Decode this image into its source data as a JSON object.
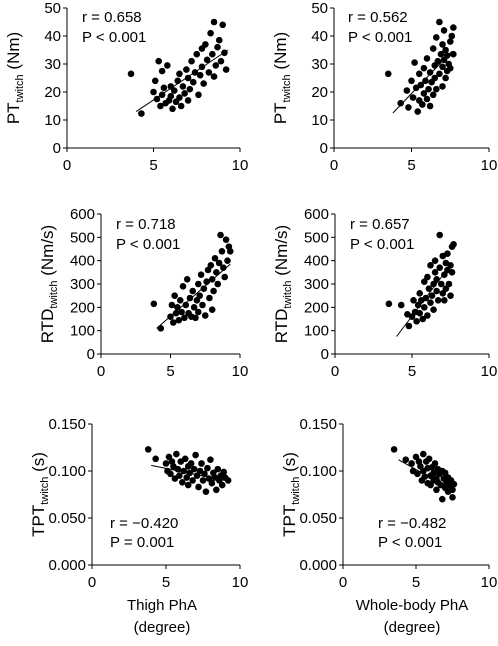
{
  "chart_data": [
    {
      "type": "scatter",
      "title": "",
      "ylabel_main": "PT",
      "ylabel_sub": "twitch",
      "ylabel_unit": " (Nm)",
      "xlabel": "",
      "xlabel_line2": "",
      "xlim": [
        0,
        10
      ],
      "ylim": [
        0,
        50
      ],
      "xticks": [
        "0",
        "5",
        "10"
      ],
      "yticks": [
        "0",
        "10",
        "20",
        "30",
        "40",
        "50"
      ],
      "stat_r": "r = 0.658",
      "stat_p": "P < 0.001",
      "fit": [
        [
          4.0,
          13.0
        ],
        [
          9.3,
          35.0
        ]
      ],
      "points": [
        [
          3.7,
          26.5
        ],
        [
          4.3,
          12.3
        ],
        [
          5.0,
          20
        ],
        [
          5.1,
          24
        ],
        [
          5.2,
          17.5
        ],
        [
          5.3,
          31
        ],
        [
          5.4,
          15
        ],
        [
          5.5,
          27.5
        ],
        [
          5.5,
          19
        ],
        [
          5.6,
          21.5
        ],
        [
          5.7,
          16
        ],
        [
          5.8,
          29.5
        ],
        [
          5.9,
          17
        ],
        [
          6.0,
          22
        ],
        [
          6.0,
          18.5
        ],
        [
          6.1,
          14
        ],
        [
          6.2,
          20.5
        ],
        [
          6.3,
          16.5
        ],
        [
          6.4,
          24
        ],
        [
          6.5,
          18
        ],
        [
          6.5,
          26.5
        ],
        [
          6.6,
          15
        ],
        [
          6.7,
          22
        ],
        [
          6.8,
          19.5
        ],
        [
          6.9,
          28
        ],
        [
          7.0,
          17
        ],
        [
          7.0,
          25
        ],
        [
          7.1,
          21
        ],
        [
          7.2,
          31
        ],
        [
          7.3,
          23.5
        ],
        [
          7.4,
          27
        ],
        [
          7.5,
          33.5
        ],
        [
          7.6,
          19
        ],
        [
          7.7,
          26
        ],
        [
          7.8,
          35.5
        ],
        [
          7.8,
          29
        ],
        [
          7.9,
          23
        ],
        [
          8.0,
          37
        ],
        [
          8.1,
          31.5
        ],
        [
          8.2,
          27
        ],
        [
          8.3,
          41
        ],
        [
          8.4,
          33.5
        ],
        [
          8.5,
          25.5
        ],
        [
          8.5,
          45
        ],
        [
          8.6,
          29.5
        ],
        [
          8.7,
          36
        ],
        [
          8.8,
          38.5
        ],
        [
          8.9,
          31
        ],
        [
          9.0,
          44
        ],
        [
          9.1,
          34
        ],
        [
          9.2,
          28
        ]
      ]
    },
    {
      "type": "scatter",
      "title": "",
      "ylabel_main": "PT",
      "ylabel_sub": "twitch",
      "ylabel_unit": " (Nm)",
      "xlabel": "",
      "xlabel_line2": "",
      "xlim": [
        0,
        10
      ],
      "ylim": [
        0,
        50
      ],
      "xticks": [
        "0",
        "5",
        "10"
      ],
      "yticks": [
        "0",
        "10",
        "20",
        "30",
        "40",
        "50"
      ],
      "stat_r": "r = 0.562",
      "stat_p": "P < 0.001",
      "fit": [
        [
          3.8,
          12.5
        ],
        [
          7.6,
          34.5
        ]
      ],
      "points": [
        [
          3.5,
          26.5
        ],
        [
          4.3,
          16
        ],
        [
          4.7,
          20.5
        ],
        [
          4.8,
          14.5
        ],
        [
          5.0,
          24
        ],
        [
          5.1,
          18
        ],
        [
          5.2,
          30.5
        ],
        [
          5.3,
          21.5
        ],
        [
          5.4,
          13
        ],
        [
          5.5,
          26.5
        ],
        [
          5.5,
          17
        ],
        [
          5.6,
          22.5
        ],
        [
          5.7,
          15.5
        ],
        [
          5.8,
          28.5
        ],
        [
          5.8,
          19.5
        ],
        [
          5.9,
          24
        ],
        [
          6.0,
          17.5
        ],
        [
          6.0,
          32
        ],
        [
          6.1,
          21
        ],
        [
          6.2,
          27
        ],
        [
          6.2,
          15
        ],
        [
          6.3,
          23.5
        ],
        [
          6.4,
          19
        ],
        [
          6.4,
          35.5
        ],
        [
          6.5,
          29.5
        ],
        [
          6.5,
          25
        ],
        [
          6.6,
          21
        ],
        [
          6.6,
          39.5
        ],
        [
          6.7,
          31
        ],
        [
          6.8,
          26.5
        ],
        [
          6.8,
          45
        ],
        [
          6.9,
          33.5
        ],
        [
          7.0,
          22
        ],
        [
          7.0,
          37
        ],
        [
          7.0,
          29
        ],
        [
          7.1,
          42
        ],
        [
          7.1,
          31.5
        ],
        [
          7.2,
          35
        ],
        [
          7.2,
          25
        ],
        [
          7.3,
          27.5
        ],
        [
          7.3,
          33
        ],
        [
          7.4,
          30
        ],
        [
          7.5,
          38
        ],
        [
          7.5,
          28.5
        ],
        [
          7.6,
          40
        ],
        [
          7.7,
          33.5
        ],
        [
          7.7,
          43
        ]
      ]
    },
    {
      "type": "scatter",
      "title": "",
      "ylabel_main": "RTD",
      "ylabel_sub": "twitch",
      "ylabel_unit": " (Nm/s)",
      "xlabel": "",
      "xlabel_line2": "",
      "xlim": [
        0,
        10
      ],
      "ylim": [
        0,
        600
      ],
      "xticks": [
        "0",
        "5",
        "10"
      ],
      "yticks": [
        "0",
        "100",
        "200",
        "300",
        "400",
        "500",
        "600"
      ],
      "stat_r": "r = 0.718",
      "stat_p": "P < 0.001",
      "fit": [
        [
          4.0,
          110
        ],
        [
          9.3,
          385
        ]
      ],
      "points": [
        [
          3.8,
          215
        ],
        [
          4.3,
          110
        ],
        [
          5.0,
          160
        ],
        [
          5.1,
          210
        ],
        [
          5.2,
          135
        ],
        [
          5.3,
          250
        ],
        [
          5.4,
          175
        ],
        [
          5.5,
          200
        ],
        [
          5.6,
          145
        ],
        [
          5.7,
          230
        ],
        [
          5.8,
          180
        ],
        [
          5.9,
          290
        ],
        [
          6.0,
          155
        ],
        [
          6.1,
          210
        ],
        [
          6.2,
          320
        ],
        [
          6.3,
          175
        ],
        [
          6.4,
          240
        ],
        [
          6.5,
          160
        ],
        [
          6.6,
          270
        ],
        [
          6.7,
          200
        ],
        [
          6.8,
          155
        ],
        [
          6.9,
          230
        ],
        [
          7.0,
          300
        ],
        [
          7.0,
          180
        ],
        [
          7.1,
          250
        ],
        [
          7.2,
          340
        ],
        [
          7.3,
          210
        ],
        [
          7.4,
          280
        ],
        [
          7.5,
          165
        ],
        [
          7.6,
          310
        ],
        [
          7.7,
          360
        ],
        [
          7.8,
          240
        ],
        [
          7.9,
          380
        ],
        [
          8.0,
          320
        ],
        [
          8.0,
          190
        ],
        [
          8.1,
          270
        ],
        [
          8.2,
          410
        ],
        [
          8.3,
          350
        ],
        [
          8.4,
          300
        ],
        [
          8.5,
          390
        ],
        [
          8.6,
          510
        ],
        [
          8.7,
          440
        ],
        [
          8.8,
          370
        ],
        [
          8.9,
          330
        ],
        [
          9.0,
          490
        ],
        [
          9.1,
          400
        ],
        [
          9.2,
          460
        ],
        [
          9.3,
          440
        ]
      ]
    },
    {
      "type": "scatter",
      "title": "",
      "ylabel_main": "RTD",
      "ylabel_sub": "twitch",
      "ylabel_unit": " (Nm/s)",
      "xlabel": "",
      "xlabel_line2": "",
      "xlim": [
        0,
        10
      ],
      "ylim": [
        0,
        600
      ],
      "xticks": [
        "0",
        "5",
        "10"
      ],
      "yticks": [
        "0",
        "100",
        "200",
        "300",
        "400",
        "500",
        "600"
      ],
      "stat_r": "r = 0.657",
      "stat_p": "P < 0.001",
      "fit": [
        [
          4.0,
          75
        ],
        [
          7.6,
          390
        ]
      ],
      "points": [
        [
          3.5,
          215
        ],
        [
          4.3,
          210
        ],
        [
          4.7,
          170
        ],
        [
          4.8,
          120
        ],
        [
          5.0,
          160
        ],
        [
          5.1,
          230
        ],
        [
          5.2,
          180
        ],
        [
          5.3,
          140
        ],
        [
          5.4,
          210
        ],
        [
          5.5,
          260
        ],
        [
          5.5,
          175
        ],
        [
          5.6,
          230
        ],
        [
          5.7,
          150
        ],
        [
          5.8,
          310
        ],
        [
          5.8,
          200
        ],
        [
          5.9,
          240
        ],
        [
          6.0,
          165
        ],
        [
          6.0,
          330
        ],
        [
          6.1,
          280
        ],
        [
          6.2,
          220
        ],
        [
          6.2,
          380
        ],
        [
          6.3,
          250
        ],
        [
          6.4,
          300
        ],
        [
          6.4,
          190
        ],
        [
          6.5,
          350
        ],
        [
          6.5,
          400
        ],
        [
          6.6,
          270
        ],
        [
          6.6,
          320
        ],
        [
          6.7,
          230
        ],
        [
          6.8,
          370
        ],
        [
          6.8,
          510
        ],
        [
          6.9,
          300
        ],
        [
          7.0,
          260
        ],
        [
          7.0,
          420
        ],
        [
          7.1,
          340
        ],
        [
          7.1,
          230
        ],
        [
          7.2,
          390
        ],
        [
          7.2,
          280
        ],
        [
          7.3,
          360
        ],
        [
          7.3,
          430
        ],
        [
          7.4,
          300
        ],
        [
          7.5,
          380
        ],
        [
          7.5,
          250
        ],
        [
          7.6,
          460
        ],
        [
          7.6,
          350
        ],
        [
          7.7,
          470
        ]
      ]
    },
    {
      "type": "scatter",
      "title": "",
      "ylabel_main": "TPT",
      "ylabel_sub": "twitch",
      "ylabel_unit": " (s)",
      "xlabel": "Thigh PhA",
      "xlabel_line2": "(degree)",
      "xlim": [
        0,
        10
      ],
      "ylim": [
        0,
        0.15
      ],
      "xticks": [
        "0",
        "5",
        "10"
      ],
      "yticks": [
        "0.000",
        "0.050",
        "0.100",
        "0.150"
      ],
      "stat_r": "r = −0.420",
      "stat_p": "P = 0.001",
      "fit": [
        [
          4.0,
          0.106
        ],
        [
          9.3,
          0.089
        ]
      ],
      "points": [
        [
          3.8,
          0.123
        ],
        [
          4.3,
          0.113
        ],
        [
          5.0,
          0.108
        ],
        [
          5.1,
          0.1
        ],
        [
          5.2,
          0.115
        ],
        [
          5.3,
          0.097
        ],
        [
          5.4,
          0.11
        ],
        [
          5.5,
          0.105
        ],
        [
          5.6,
          0.092
        ],
        [
          5.7,
          0.118
        ],
        [
          5.8,
          0.102
        ],
        [
          5.9,
          0.095
        ],
        [
          6.0,
          0.11
        ],
        [
          6.1,
          0.088
        ],
        [
          6.2,
          0.1
        ],
        [
          6.3,
          0.113
        ],
        [
          6.4,
          0.093
        ],
        [
          6.5,
          0.105
        ],
        [
          6.5,
          0.085
        ],
        [
          6.6,
          0.098
        ],
        [
          6.7,
          0.108
        ],
        [
          6.8,
          0.09
        ],
        [
          6.9,
          0.102
        ],
        [
          7.0,
          0.117
        ],
        [
          7.1,
          0.095
        ],
        [
          7.2,
          0.083
        ],
        [
          7.3,
          0.1
        ],
        [
          7.4,
          0.108
        ],
        [
          7.5,
          0.09
        ],
        [
          7.6,
          0.097
        ],
        [
          7.7,
          0.078
        ],
        [
          7.8,
          0.103
        ],
        [
          7.9,
          0.092
        ],
        [
          8.0,
          0.112
        ],
        [
          8.1,
          0.087
        ],
        [
          8.2,
          0.098
        ],
        [
          8.3,
          0.093
        ],
        [
          8.4,
          0.08
        ],
        [
          8.5,
          0.102
        ],
        [
          8.6,
          0.09
        ],
        [
          8.7,
          0.095
        ],
        [
          8.8,
          0.085
        ],
        [
          8.9,
          0.099
        ],
        [
          9.0,
          0.093
        ],
        [
          9.2,
          0.09
        ]
      ]
    },
    {
      "type": "scatter",
      "title": "",
      "ylabel_main": "TPT",
      "ylabel_sub": "twitch",
      "ylabel_unit": " (s)",
      "xlabel": "Whole-body PhA",
      "xlabel_line2": "(degree)",
      "xlim": [
        0,
        10
      ],
      "ylim": [
        0,
        0.15
      ],
      "xticks": [
        "0",
        "5",
        "10"
      ],
      "yticks": [
        "0.000",
        "0.050",
        "0.100",
        "0.150"
      ],
      "stat_r": "r = −0.482",
      "stat_p": "P < 0.001",
      "fit": [
        [
          3.8,
          0.112
        ],
        [
          7.6,
          0.079
        ]
      ],
      "points": [
        [
          3.5,
          0.123
        ],
        [
          4.3,
          0.112
        ],
        [
          4.7,
          0.108
        ],
        [
          4.8,
          0.1
        ],
        [
          5.0,
          0.115
        ],
        [
          5.1,
          0.097
        ],
        [
          5.2,
          0.11
        ],
        [
          5.3,
          0.105
        ],
        [
          5.4,
          0.09
        ],
        [
          5.5,
          0.118
        ],
        [
          5.5,
          0.1
        ],
        [
          5.6,
          0.094
        ],
        [
          5.7,
          0.11
        ],
        [
          5.8,
          0.087
        ],
        [
          5.8,
          0.103
        ],
        [
          5.9,
          0.113
        ],
        [
          6.0,
          0.095
        ],
        [
          6.0,
          0.085
        ],
        [
          6.1,
          0.104
        ],
        [
          6.2,
          0.098
        ],
        [
          6.2,
          0.09
        ],
        [
          6.3,
          0.108
        ],
        [
          6.4,
          0.092
        ],
        [
          6.4,
          0.08
        ],
        [
          6.5,
          0.102
        ],
        [
          6.5,
          0.088
        ],
        [
          6.6,
          0.097
        ],
        [
          6.7,
          0.085
        ],
        [
          6.8,
          0.1
        ],
        [
          6.8,
          0.07
        ],
        [
          6.9,
          0.092
        ],
        [
          7.0,
          0.082
        ],
        [
          7.0,
          0.098
        ],
        [
          7.1,
          0.088
        ],
        [
          7.2,
          0.078
        ],
        [
          7.2,
          0.093
        ],
        [
          7.3,
          0.085
        ],
        [
          7.4,
          0.09
        ],
        [
          7.5,
          0.08
        ],
        [
          7.5,
          0.072
        ],
        [
          7.6,
          0.086
        ]
      ]
    }
  ]
}
